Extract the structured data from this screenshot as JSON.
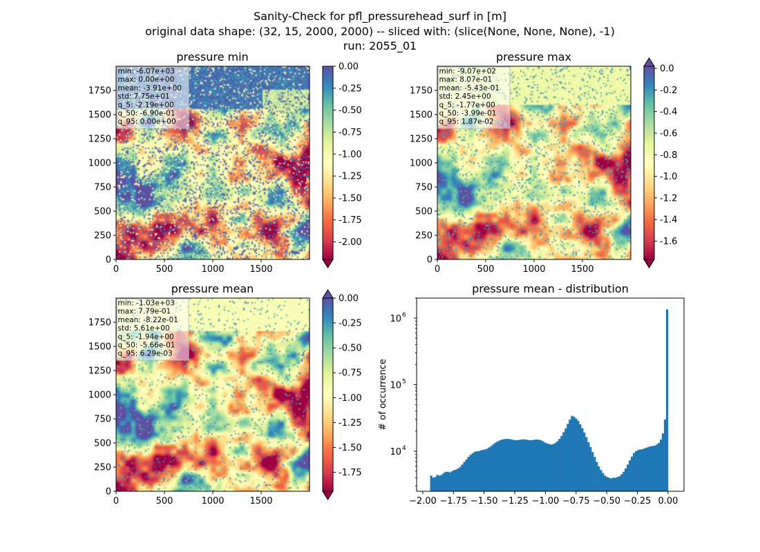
{
  "figure": {
    "title_lines": [
      "Sanity-Check for pfl_pressurehead_surf in [m]",
      "original data shape: (32, 15, 2000, 2000) -- sliced with: (slice(None, None, None), -1)",
      "run: 2055_01"
    ]
  },
  "colormap": {
    "name": "Spectral",
    "stops": [
      "#9e0142",
      "#d53e4f",
      "#f46d43",
      "#fdae61",
      "#fee08b",
      "#ffffbf",
      "#e6f598",
      "#abdda4",
      "#66c2a5",
      "#3288bd",
      "#5e4fa2"
    ]
  },
  "chart_data": [
    {
      "type": "heatmap",
      "id": "pressure_min",
      "title": "pressure min",
      "x_ticks": [
        "0",
        "500",
        "1000",
        "1500"
      ],
      "y_ticks": [
        "0",
        "250",
        "500",
        "750",
        "1000",
        "1250",
        "1500",
        "1750"
      ],
      "xlim": [
        0,
        2000
      ],
      "ylim": [
        0,
        2000
      ],
      "colorbar": {
        "range": [
          -2.2,
          0.0
        ],
        "ticks": [
          "0.00",
          "-0.25",
          "-0.50",
          "-0.75",
          "-1.00",
          "-1.25",
          "-1.50",
          "-1.75",
          "-2.00"
        ],
        "extend_top": false,
        "extend_bottom": true
      },
      "stats": [
        "min: -6.07e+03",
        "max: 0.00e+00",
        "mean: -3.91e+00",
        "std: 7.75e+01",
        "q_5: -2.19e+00",
        "q_50: -6.90e-01",
        "q_95: 0.00e+00"
      ]
    },
    {
      "type": "heatmap",
      "id": "pressure_max",
      "title": "pressure max",
      "x_ticks": [
        "0",
        "500",
        "1000",
        "1500"
      ],
      "y_ticks": [
        "0",
        "250",
        "500",
        "750",
        "1000",
        "1250",
        "1500",
        "1750"
      ],
      "xlim": [
        0,
        2000
      ],
      "ylim": [
        0,
        2000
      ],
      "colorbar": {
        "range": [
          -1.77,
          0.02
        ],
        "ticks": [
          "0.0",
          "-0.2",
          "-0.4",
          "-0.6",
          "-0.8",
          "-1.0",
          "-1.2",
          "-1.4",
          "-1.6"
        ],
        "extend_top": true,
        "extend_bottom": true
      },
      "stats": [
        "min: -9.07e+02",
        "max: 8.07e-01",
        "mean: -5.43e-01",
        "std: 2.45e+00",
        "q_5: -1.77e+00",
        "q_50: -3.99e-01",
        "q_95: 1.87e-02"
      ]
    },
    {
      "type": "heatmap",
      "id": "pressure_mean",
      "title": "pressure mean",
      "x_ticks": [
        "0",
        "500",
        "1000",
        "1500"
      ],
      "y_ticks": [
        "0",
        "250",
        "500",
        "750",
        "1000",
        "1250",
        "1500",
        "1750"
      ],
      "xlim": [
        0,
        2000
      ],
      "ylim": [
        0,
        2000
      ],
      "colorbar": {
        "range": [
          -1.94,
          0.0
        ],
        "ticks": [
          "0.00",
          "-0.25",
          "-0.50",
          "-0.75",
          "-1.00",
          "-1.25",
          "-1.50",
          "-1.75"
        ],
        "extend_top": true,
        "extend_bottom": true
      },
      "stats": [
        "min: -1.03e+03",
        "max: 7.79e-01",
        "mean: -8.22e-01",
        "std: 5.61e+00",
        "q_5: -1.94e+00",
        "q_50: -5.66e-01",
        "q_95: 6.29e-03"
      ]
    },
    {
      "type": "bar",
      "id": "pressure_mean_distribution",
      "title": "pressure mean - distribution",
      "ylabel": "# of occurrence",
      "xlabel": "",
      "y_scale": "log",
      "color": "#1f77b4",
      "xlim": [
        -2.05,
        0.13
      ],
      "ylim": [
        2500,
        2000000
      ],
      "x_ticks": [
        "−2.00",
        "−1.75",
        "−1.50",
        "−1.25",
        "−1.00",
        "−0.75",
        "−0.50",
        "−0.25",
        "0.00"
      ],
      "y_ticks": [
        {
          "value": 10000,
          "base": "10",
          "exp": "4"
        },
        {
          "value": 100000,
          "base": "10",
          "exp": "5"
        },
        {
          "value": 1000000,
          "base": "10",
          "exp": "6"
        }
      ],
      "bin_range": [
        -1.94,
        0.0
      ],
      "values": [
        4300,
        4000,
        4100,
        4400,
        4300,
        4400,
        4700,
        4900,
        4900,
        4800,
        5000,
        5200,
        5300,
        5500,
        5800,
        6300,
        6900,
        7500,
        8200,
        8800,
        9300,
        9800,
        10000,
        10000,
        10300,
        10500,
        10600,
        10900,
        11400,
        12000,
        12700,
        13400,
        14000,
        14500,
        14900,
        15100,
        15300,
        15300,
        15200,
        15000,
        14700,
        14600,
        14700,
        14900,
        15000,
        15100,
        14900,
        14700,
        14600,
        14700,
        14900,
        15000,
        14900,
        14600,
        14100,
        13500,
        13100,
        12800,
        12600,
        12800,
        13300,
        14100,
        15300,
        17000,
        19300,
        22000,
        25700,
        29800,
        34000,
        33000,
        31000,
        28700,
        25400,
        22200,
        19100,
        16200,
        13700,
        11600,
        9700,
        8200,
        6900,
        5900,
        5200,
        4700,
        4300,
        4100,
        4000,
        3900,
        4000,
        4000,
        4100,
        4200,
        4500,
        4900,
        5500,
        6300,
        7300,
        8300,
        9400,
        10000,
        10400,
        10600,
        10700,
        11000,
        11300,
        11600,
        11800,
        12000,
        12100,
        12600,
        13300,
        15000,
        18500,
        30000,
        1350000
      ]
    }
  ]
}
